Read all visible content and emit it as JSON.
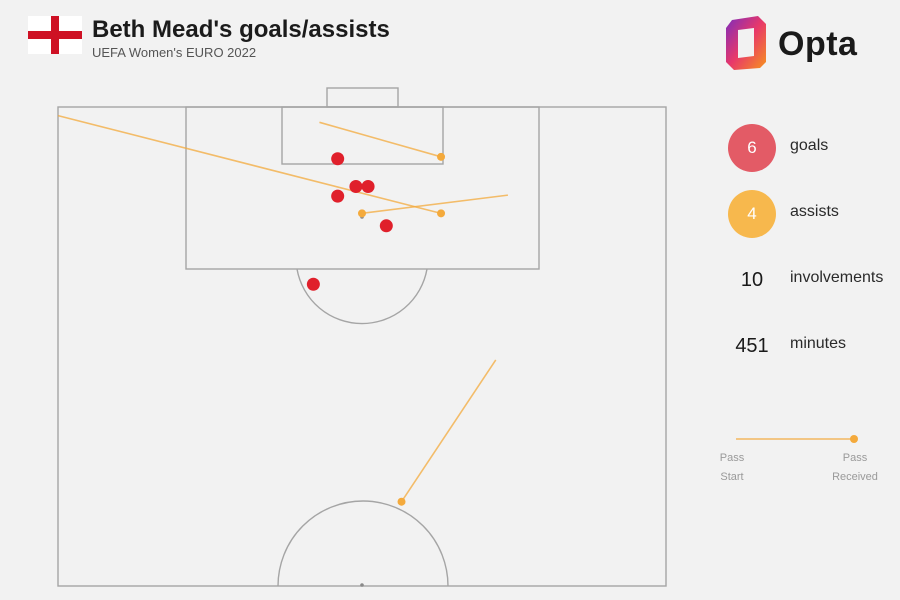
{
  "header": {
    "title": "Beth Mead's goals/assists",
    "subtitle": "UEFA Women's EURO 2022"
  },
  "brand": {
    "name": "Opta"
  },
  "stats": [
    {
      "value": "6",
      "label": "goals",
      "color": "#e35b66"
    },
    {
      "value": "4",
      "label": "assists",
      "color": "#f7b84d"
    },
    {
      "value": "10",
      "label": "involvements"
    },
    {
      "value": "451",
      "label": "minutes"
    }
  ],
  "legend": {
    "start_label": "Pass\nStart",
    "end_label": "Pass\nReceived"
  },
  "colors": {
    "goal": "#e0202b",
    "assist": "#f4aa3c",
    "pitch_line": "#a5a5a5",
    "background": "#f2f2f2"
  },
  "chart_data": {
    "type": "scatter",
    "title": "Beth Mead's goals/assists",
    "series": [
      {
        "name": "goals",
        "points": [
          {
            "x": 46.0,
            "y": 94.6
          },
          {
            "x": 49.0,
            "y": 91.7
          },
          {
            "x": 51.0,
            "y": 91.7
          },
          {
            "x": 46.0,
            "y": 90.7
          },
          {
            "x": 54.0,
            "y": 87.6
          },
          {
            "x": 42.0,
            "y": 81.5
          }
        ]
      },
      {
        "name": "assists",
        "passes": [
          {
            "start": {
              "x": 0.0,
              "y": 99.1
            },
            "end": {
              "x": 63.0,
              "y": 88.9
            }
          },
          {
            "start": {
              "x": 43.0,
              "y": 98.4
            },
            "end": {
              "x": 63.0,
              "y": 94.8
            }
          },
          {
            "start": {
              "x": 74.0,
              "y": 90.8
            },
            "end": {
              "x": 50.0,
              "y": 88.9
            }
          },
          {
            "start": {
              "x": 72.0,
              "y": 73.6
            },
            "end": {
              "x": 56.5,
              "y": 58.8
            }
          }
        ]
      }
    ]
  }
}
